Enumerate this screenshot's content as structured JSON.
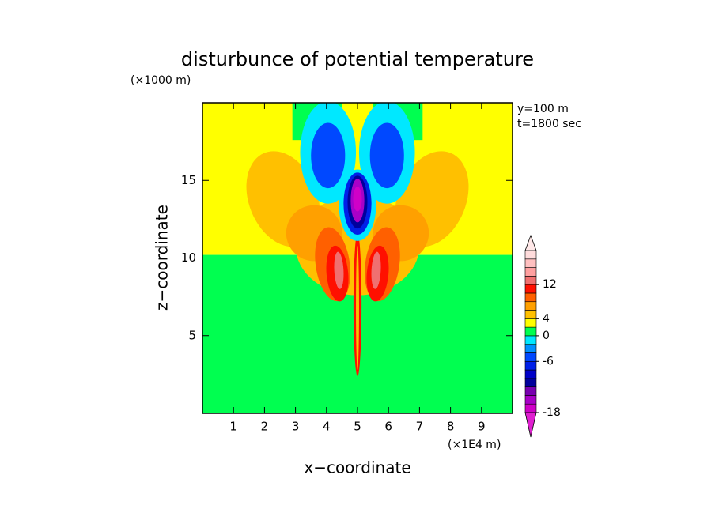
{
  "chart_data": {
    "type": "contour",
    "title": "disturbunce of potential temperature",
    "x_label": "x−coordinate",
    "y_label": "z−coordinate",
    "x_unit": "(×1E4 m)",
    "y_unit": "(×1000 m)",
    "annotations": [
      "y=100 m",
      "t=1800 sec"
    ],
    "xlim": [
      0,
      10
    ],
    "ylim": [
      0,
      20
    ],
    "xticks": [
      1,
      2,
      3,
      4,
      5,
      6,
      7,
      8,
      9
    ],
    "yticks": [
      5,
      10,
      15
    ],
    "colorbar": {
      "levels": [
        -18,
        -16,
        -14,
        -12,
        -10,
        -8,
        -6,
        -4,
        -2,
        0,
        2,
        4,
        6,
        8,
        10,
        12,
        14,
        16,
        18,
        20
      ],
      "colors": [
        "#d000c8",
        "#a800c8",
        "#7800b0",
        "#00009c",
        "#0000c8",
        "#0020e8",
        "#0048ff",
        "#0090ff",
        "#00e8ff",
        "#00ff50",
        "#ffff00",
        "#ffc000",
        "#ffa000",
        "#ff6000",
        "#ff1000",
        "#f07070",
        "#ffa0a0",
        "#ffc0c0",
        "#ffdcdc"
      ],
      "under_color": "#e020d0",
      "over_color": "#ffe8e8",
      "ticks": [
        12,
        4,
        0,
        -6,
        -18
      ]
    }
  }
}
